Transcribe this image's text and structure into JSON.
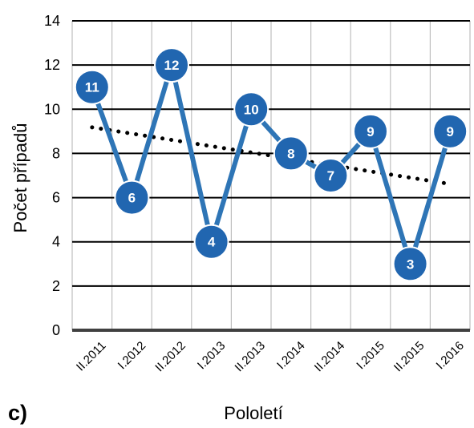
{
  "panel_label": "c)",
  "chart_data": {
    "type": "line",
    "categories": [
      "II.2011",
      "I.2012",
      "II.2012",
      "I.2013",
      "II.2013",
      "I.2014",
      "II.2014",
      "I.2015",
      "II.2015",
      "I.2016"
    ],
    "series": [
      {
        "values": [
          11,
          6,
          12,
          4,
          10,
          8,
          7,
          9,
          3,
          9
        ],
        "color": "#2E75B6",
        "marker_fill": "#2166B0"
      }
    ],
    "trendline": {
      "type": "linear",
      "style": "dotted",
      "color": "#000000"
    },
    "xlabel": "Pololetí",
    "ylabel": "Počet případů",
    "ylim": [
      0,
      14
    ],
    "yticks": [
      0,
      2,
      4,
      6,
      8,
      10,
      12,
      14
    ],
    "grid": true,
    "data_labels": true
  }
}
